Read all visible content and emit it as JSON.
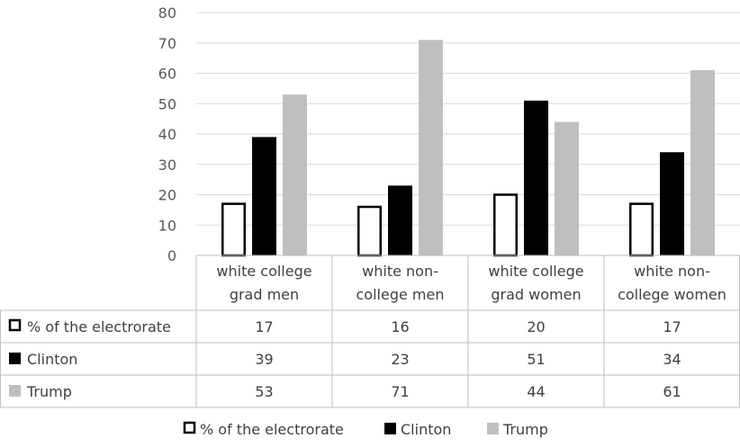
{
  "chart_data": {
    "type": "bar",
    "categories": [
      [
        "white college",
        "grad men"
      ],
      [
        "white non-",
        "college men"
      ],
      [
        "white college",
        "grad women"
      ],
      [
        "white non-",
        "college women"
      ]
    ],
    "series": [
      {
        "name": "% of the electrorate",
        "values": [
          17,
          16,
          20,
          17
        ],
        "fill": "#ffffff",
        "stroke": "#000000"
      },
      {
        "name": "Clinton",
        "values": [
          39,
          23,
          51,
          34
        ],
        "fill": "#000000",
        "stroke": "#000000"
      },
      {
        "name": "Trump",
        "values": [
          53,
          71,
          44,
          61
        ],
        "fill": "#bfbfbf",
        "stroke": "#bfbfbf"
      }
    ],
    "ylim": [
      0,
      80
    ],
    "yticks": [
      "0",
      "10",
      "20",
      "30",
      "40",
      "50",
      "60",
      "70",
      "80"
    ],
    "grid": true,
    "data_table": true,
    "legend_position": "bottom"
  }
}
